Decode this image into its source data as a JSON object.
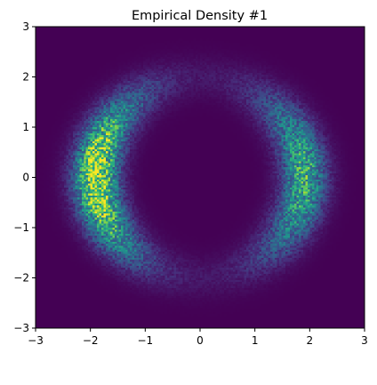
{
  "chart_data": {
    "type": "heatmap",
    "title": "Empirical Density #1",
    "xlabel": "",
    "ylabel": "",
    "xlim": [
      -3,
      3
    ],
    "ylim": [
      -3,
      3
    ],
    "x_ticks": [
      -3,
      -2,
      -1,
      0,
      1,
      2,
      3
    ],
    "y_ticks": [
      -3,
      -2,
      -1,
      0,
      1,
      2,
      3
    ],
    "x_tick_labels": [
      "−3",
      "−2",
      "−1",
      "0",
      "1",
      "2",
      "3"
    ],
    "y_tick_labels": [
      "−3",
      "−2",
      "−1",
      "0",
      "1",
      "2",
      "3"
    ],
    "grid": false,
    "colormap": "viridis",
    "background_color": "#440154",
    "bins": 150,
    "description_of_density": [
      {
        "shape": "crescent",
        "side": "left",
        "center_x": -1.9,
        "center_y": 0.0,
        "radius": 2.0,
        "peak_relative": 1.0
      },
      {
        "shape": "crescent",
        "side": "right",
        "center_x": 1.9,
        "center_y": 0.0,
        "radius": 2.0,
        "peak_relative": 0.7
      }
    ]
  }
}
